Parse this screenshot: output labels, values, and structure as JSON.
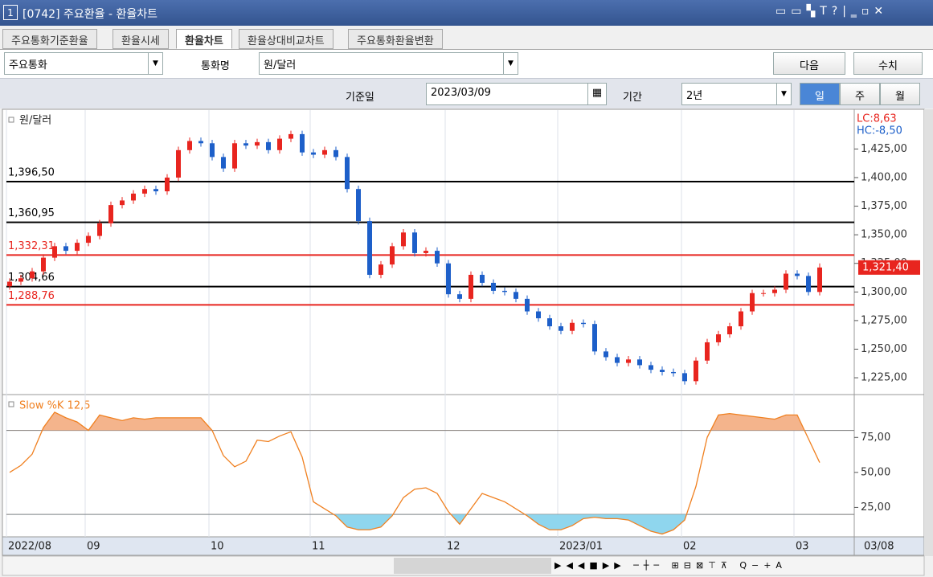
{
  "window": {
    "title_number": "1",
    "title": "[0742] 주요환율 - 환율차트",
    "tabs": [
      "주요통화기준환율",
      "환율시세",
      "환율차트",
      "환율상대비교차트",
      "주요통화환율변환"
    ],
    "group_select": "주요통화",
    "currency_label": "통화명",
    "currency_select": "원/달러",
    "next_button": "다음",
    "value_button": "수치",
    "date_label": "기준일",
    "date_value": "2023/03/09",
    "period_label": "기간",
    "period_select": "2년",
    "period_buttons": [
      "일",
      "주",
      "월"
    ]
  },
  "chart_data": [
    {
      "type": "candlestick",
      "title": "원/달러",
      "lc_label": "LC:8,63",
      "hc_label": "HC:-8,50",
      "date_label": "03/08",
      "up_color": "#e8251f",
      "down_color": "#1d5fc9",
      "grid": true,
      "categories": [
        "2022/08",
        null,
        null,
        null,
        null,
        null,
        null,
        "09",
        null,
        null,
        null,
        null,
        null,
        null,
        null,
        null,
        null,
        null,
        "10",
        null,
        null,
        null,
        null,
        null,
        null,
        null,
        null,
        "11",
        null,
        null,
        null,
        null,
        null,
        null,
        null,
        null,
        null,
        null,
        null,
        "12",
        null,
        null,
        null,
        null,
        null,
        null,
        null,
        null,
        null,
        "2023/01",
        null,
        null,
        null,
        null,
        null,
        null,
        null,
        null,
        null,
        null,
        "02",
        null,
        null,
        null,
        null,
        null,
        null,
        null,
        null,
        null,
        "03",
        null,
        null
      ],
      "open": [
        1305,
        1309,
        1312,
        1318,
        1330,
        1340,
        1336,
        1343,
        1349,
        1360,
        1376,
        1380,
        1386,
        1390,
        1388,
        1400,
        1424,
        1432,
        1430,
        1418,
        1408,
        1430,
        1428,
        1431,
        1424,
        1434,
        1438,
        1422,
        1420,
        1424,
        1418,
        1390,
        1362,
        1315,
        1324,
        1340,
        1352,
        1334,
        1336,
        1325,
        1298,
        1294,
        1315,
        1308,
        1301,
        1300,
        1294,
        1283,
        1277,
        1270,
        1266,
        1273,
        1272,
        1248,
        1243,
        1238,
        1241,
        1236,
        1232,
        1230,
        1229,
        1222,
        1240,
        1256,
        1263,
        1270,
        1283,
        1299,
        1299,
        1302,
        1316,
        1314,
        1300
      ],
      "high": [
        1312,
        1315,
        1321,
        1333,
        1343,
        1343,
        1346,
        1352,
        1363,
        1379,
        1383,
        1389,
        1393,
        1393,
        1403,
        1427,
        1435,
        1435,
        1433,
        1421,
        1433,
        1433,
        1434,
        1434,
        1437,
        1441,
        1441,
        1425,
        1427,
        1427,
        1421,
        1393,
        1365,
        1327,
        1343,
        1355,
        1355,
        1339,
        1339,
        1328,
        1301,
        1318,
        1318,
        1311,
        1304,
        1303,
        1297,
        1286,
        1280,
        1273,
        1276,
        1276,
        1275,
        1251,
        1246,
        1244,
        1244,
        1239,
        1235,
        1233,
        1232,
        1243,
        1259,
        1266,
        1273,
        1286,
        1302,
        1302,
        1305,
        1319,
        1319,
        1317,
        1325
      ],
      "low": [
        1302,
        1306,
        1309,
        1315,
        1327,
        1333,
        1333,
        1340,
        1346,
        1357,
        1373,
        1377,
        1383,
        1385,
        1385,
        1397,
        1421,
        1427,
        1415,
        1405,
        1405,
        1425,
        1425,
        1421,
        1421,
        1431,
        1419,
        1417,
        1417,
        1415,
        1387,
        1359,
        1312,
        1312,
        1321,
        1337,
        1331,
        1331,
        1322,
        1295,
        1291,
        1291,
        1305,
        1298,
        1297,
        1291,
        1280,
        1274,
        1267,
        1263,
        1263,
        1269,
        1245,
        1240,
        1235,
        1235,
        1233,
        1229,
        1227,
        1226,
        1219,
        1219,
        1237,
        1253,
        1260,
        1267,
        1280,
        1296,
        1296,
        1299,
        1311,
        1297,
        1297
      ],
      "close": [
        1309,
        1312,
        1318,
        1330,
        1340,
        1336,
        1343,
        1349,
        1360,
        1376,
        1380,
        1386,
        1390,
        1388,
        1400,
        1424,
        1432,
        1430,
        1418,
        1408,
        1430,
        1428,
        1431,
        1424,
        1434,
        1438,
        1422,
        1420,
        1424,
        1418,
        1390,
        1362,
        1315,
        1324,
        1340,
        1352,
        1334,
        1336,
        1325,
        1298,
        1294,
        1315,
        1308,
        1301,
        1300,
        1294,
        1283,
        1277,
        1270,
        1266,
        1273,
        1272,
        1248,
        1243,
        1238,
        1241,
        1236,
        1232,
        1230,
        1229,
        1222,
        1240,
        1256,
        1263,
        1270,
        1283,
        1299,
        1299,
        1302,
        1316,
        1314,
        1300,
        1321.4
      ],
      "levels": [
        {
          "value": 1396.5,
          "label": "1,396,50",
          "color": "#000000"
        },
        {
          "value": 1360.95,
          "label": "1,360,95",
          "color": "#000000"
        },
        {
          "value": 1332.31,
          "label": "1,332,31",
          "color": "#e8251f"
        },
        {
          "value": 1304.66,
          "label": "1,304,66",
          "color": "#000000"
        },
        {
          "value": 1288.76,
          "label": "1,288,76",
          "color": "#e8251f"
        }
      ],
      "current": {
        "value": 1321.4,
        "label": "1,321,40",
        "color": "#e8251f"
      },
      "ylim": [
        1211,
        1459
      ],
      "yticks": [
        {
          "value": 1225,
          "label": "1,225,00"
        },
        {
          "value": 1250,
          "label": "1,250,00"
        },
        {
          "value": 1275,
          "label": "1,275,00"
        },
        {
          "value": 1300,
          "label": "1,300,00"
        },
        {
          "value": 1325,
          "label": "1,325,00"
        },
        {
          "value": 1350,
          "label": "1,350,00"
        },
        {
          "value": 1375,
          "label": "1,375,00"
        },
        {
          "value": 1400,
          "label": "1,400,00"
        },
        {
          "value": 1425,
          "label": "1,425,00"
        }
      ]
    },
    {
      "type": "line",
      "title": "Slow %K 12,5",
      "color": "#f08020",
      "upper_band": 80,
      "lower_band": 20,
      "upper_fill": "#f4b48c",
      "lower_fill": "#8fd6ee",
      "values": [
        50,
        55,
        63,
        82,
        93,
        89,
        86,
        80,
        91,
        89,
        87,
        89,
        88,
        89,
        89,
        89,
        89,
        89,
        80,
        62,
        54,
        58,
        73,
        72,
        76,
        79,
        61,
        29,
        24,
        19,
        11,
        9,
        9,
        11,
        19,
        32,
        38,
        39,
        35,
        22,
        13,
        24,
        35,
        32,
        29,
        24,
        19,
        13,
        9,
        9,
        12,
        17,
        18,
        17,
        17,
        16,
        12,
        8,
        6,
        9,
        16,
        40,
        75,
        91,
        92,
        91,
        90,
        89,
        88,
        91,
        91,
        74,
        57
      ],
      "ylim": [
        4,
        105
      ],
      "yticks": [
        {
          "value": 25,
          "label": "25,00"
        },
        {
          "value": 50,
          "label": "50,00"
        },
        {
          "value": 75,
          "label": "75,00"
        }
      ]
    }
  ]
}
